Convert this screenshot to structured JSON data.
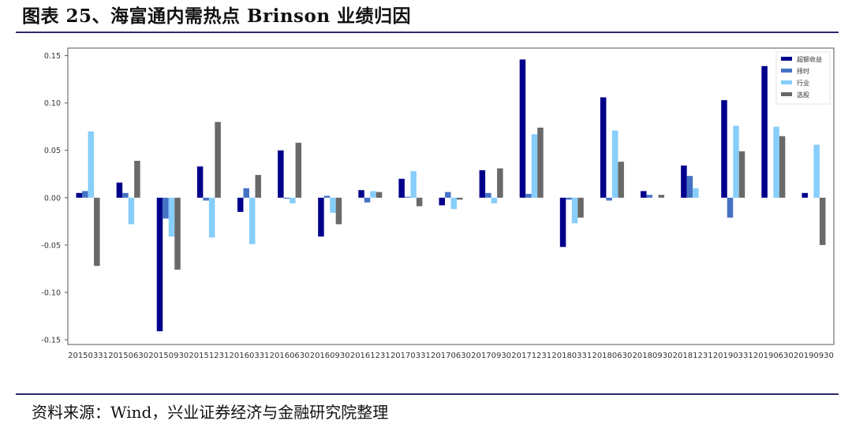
{
  "header": {
    "title": "图表 25、海富通内需热点 Brinson 业绩归因"
  },
  "footer": {
    "source": "资料来源：Wind，兴业证券经济与金融研究院整理"
  },
  "chart_data": {
    "type": "bar",
    "title": "",
    "xlabel": "",
    "ylabel": "",
    "ylim": [
      -0.155,
      0.158
    ],
    "yticks": [
      "0.15",
      "0.10",
      "0.05",
      "0.00",
      "-0.05",
      "-0.10",
      "-0.15"
    ],
    "ytick_values": [
      0.15,
      0.1,
      0.05,
      0.0,
      -0.05,
      -0.1,
      -0.15
    ],
    "grid": false,
    "legend_position": "top-right",
    "categories": [
      "20150331",
      "20150630",
      "20150930",
      "20151231",
      "20160331",
      "20160630",
      "20160930",
      "20161231",
      "20170331",
      "20170630",
      "20170930",
      "20171231",
      "20180331",
      "20180630",
      "20180930",
      "20181231",
      "20190331",
      "20190630",
      "20190930"
    ],
    "series": [
      {
        "name": "超额收益",
        "color": "#00008b",
        "values": [
          0.005,
          0.016,
          -0.141,
          0.033,
          -0.015,
          0.05,
          -0.041,
          0.008,
          0.02,
          -0.008,
          0.029,
          0.146,
          -0.052,
          0.106,
          0.007,
          0.034,
          0.103,
          0.139,
          0.005
        ]
      },
      {
        "name": "择时",
        "color": "#4472c4",
        "values": [
          0.007,
          0.005,
          -0.022,
          -0.003,
          0.01,
          -0.001,
          0.002,
          -0.005,
          0.001,
          0.006,
          0.005,
          0.004,
          -0.002,
          -0.003,
          0.003,
          0.023,
          -0.021,
          0.0,
          0.0
        ]
      },
      {
        "name": "行业",
        "color": "#87cefa",
        "values": [
          0.07,
          -0.028,
          -0.041,
          -0.042,
          -0.049,
          -0.006,
          -0.016,
          0.007,
          0.028,
          -0.012,
          -0.006,
          0.067,
          -0.027,
          0.071,
          0.0,
          0.01,
          0.076,
          0.075,
          0.056
        ]
      },
      {
        "name": "选股",
        "color": "#696969",
        "values": [
          -0.072,
          0.039,
          -0.076,
          0.08,
          0.024,
          0.058,
          -0.028,
          0.006,
          -0.009,
          -0.002,
          0.031,
          0.074,
          -0.021,
          0.038,
          0.003,
          0.0,
          0.049,
          0.065,
          -0.05
        ]
      }
    ]
  }
}
